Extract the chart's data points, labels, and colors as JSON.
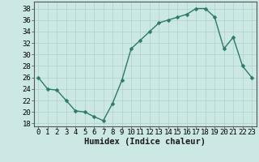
{
  "x": [
    0,
    1,
    2,
    3,
    4,
    5,
    6,
    7,
    8,
    9,
    10,
    11,
    12,
    13,
    14,
    15,
    16,
    17,
    18,
    19,
    20,
    21,
    22,
    23
  ],
  "y": [
    26,
    24,
    23.8,
    22,
    20.2,
    20,
    19.2,
    18.5,
    21.5,
    25.5,
    31,
    32.5,
    34,
    35.5,
    36,
    36.5,
    37,
    38,
    38,
    36.5,
    31,
    33,
    28,
    26
  ],
  "line_color": "#2d7a6a",
  "marker_color": "#2d7a6a",
  "bg_color": "#cce8e4",
  "grid_color": "#b0d0cc",
  "xlabel": "Humidex (Indice chaleur)",
  "ylabel_ticks": [
    18,
    20,
    22,
    24,
    26,
    28,
    30,
    32,
    34,
    36,
    38
  ],
  "xlim": [
    -0.5,
    23.5
  ],
  "ylim": [
    17.5,
    39.2
  ],
  "xtick_labels": [
    "0",
    "1",
    "2",
    "3",
    "4",
    "5",
    "6",
    "7",
    "8",
    "9",
    "10",
    "11",
    "12",
    "13",
    "14",
    "15",
    "16",
    "17",
    "18",
    "19",
    "20",
    "21",
    "22",
    "23"
  ],
  "xlabel_fontsize": 7.5,
  "tick_fontsize": 6.5,
  "line_width": 1.0,
  "marker_size": 2.5
}
